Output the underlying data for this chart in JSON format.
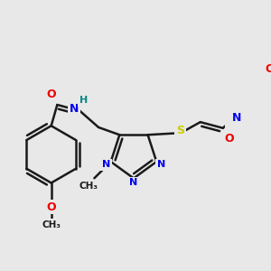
{
  "bg_color": "#e8e8e8",
  "atom_colors": {
    "C": "#000000",
    "N": "#0000ee",
    "O": "#ee0000",
    "S": "#cccc00",
    "H": "#008888"
  },
  "bond_color": "#1a1a1a",
  "bond_width": 1.8,
  "figsize": [
    3.0,
    3.0
  ],
  "dpi": 100
}
